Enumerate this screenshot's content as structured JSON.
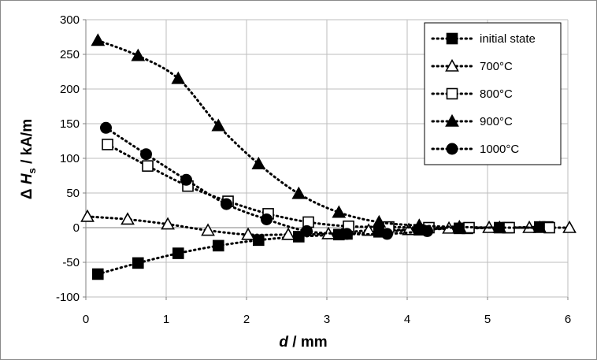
{
  "chart_data": {
    "type": "scatter",
    "title": "",
    "xlabel": {
      "main": "d",
      "unit": " / mm"
    },
    "ylabel": {
      "prefix": "Δ ",
      "main": "H",
      "sub": "s",
      "unit": " / kA/m"
    },
    "xlim": [
      0,
      6
    ],
    "ylim": [
      -100,
      300
    ],
    "xticks": [
      0,
      1,
      2,
      3,
      4,
      5,
      6
    ],
    "yticks": [
      -100,
      -50,
      0,
      50,
      100,
      150,
      200,
      250,
      300
    ],
    "grid": true,
    "legend_position": "top-right",
    "series": [
      {
        "name": "initial state",
        "marker": "square-filled",
        "x": [
          0.15,
          0.65,
          1.15,
          1.65,
          2.15,
          2.65,
          3.15,
          3.25,
          3.65,
          4.15,
          4.65,
          4.75,
          5.15,
          5.25,
          5.65,
          5.75
        ],
        "y": [
          -67,
          -51,
          -37,
          -26,
          -18,
          -13,
          -10,
          -9,
          -6,
          -3,
          -1,
          -1,
          0,
          0,
          1,
          1
        ]
      },
      {
        "name": "700°C",
        "marker": "triangle-open",
        "x": [
          0.02,
          0.52,
          1.02,
          1.52,
          2.02,
          2.52,
          3.02,
          3.52,
          4.02,
          4.52,
          5.02,
          5.52,
          6.02
        ],
        "y": [
          16,
          12,
          5,
          -4,
          -10,
          -10,
          -9,
          -4,
          -3,
          -1,
          0,
          0,
          0
        ]
      },
      {
        "name": "800°C",
        "marker": "square-open",
        "x": [
          0.27,
          0.77,
          1.27,
          1.77,
          2.27,
          2.77,
          3.27,
          3.77,
          4.27,
          4.77,
          5.27,
          5.77
        ],
        "y": [
          120,
          89,
          60,
          38,
          20,
          8,
          2,
          1,
          0,
          0,
          0,
          0
        ]
      },
      {
        "name": "900°C",
        "marker": "triangle-filled",
        "x": [
          0.15,
          0.65,
          1.15,
          1.65,
          2.15,
          2.65,
          3.15,
          3.65,
          4.15,
          4.65,
          5.15,
          5.65
        ],
        "y": [
          270,
          248,
          215,
          147,
          92,
          49,
          22,
          8,
          3,
          1,
          0,
          0
        ]
      },
      {
        "name": "1000°C",
        "marker": "circle-filled",
        "x": [
          0.25,
          0.75,
          1.25,
          1.75,
          2.25,
          2.75,
          3.25,
          3.75,
          4.25
        ],
        "y": [
          144,
          106,
          69,
          34,
          12,
          -5,
          -9,
          -9,
          -5
        ]
      }
    ]
  }
}
